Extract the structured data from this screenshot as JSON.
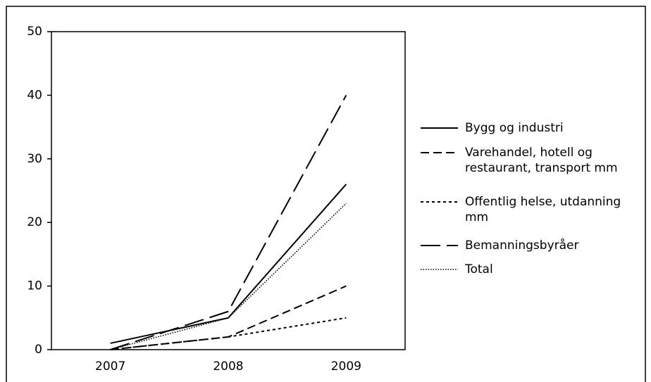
{
  "chart_data": {
    "type": "line",
    "categories": [
      "2007",
      "2008",
      "2009"
    ],
    "ylim": [
      0,
      50
    ],
    "yticks": [
      0,
      10,
      20,
      30,
      40,
      50
    ],
    "series": [
      {
        "name": "Bygg og industri",
        "color": "#000000",
        "dash": "none",
        "values": [
          1,
          5,
          26
        ]
      },
      {
        "name": "Varehandel, hotell og restaurant, transport mm",
        "color": "#000000",
        "dash": "12 6",
        "values": [
          0,
          2,
          10
        ]
      },
      {
        "name": "Offentlig helse, utdanning mm",
        "color": "#000000",
        "dash": "4 4",
        "values": [
          0,
          2,
          5
        ]
      },
      {
        "name": "Bemanningsbyråer",
        "color": "#000000",
        "dash": "28 9",
        "values": [
          0,
          6,
          40
        ]
      },
      {
        "name": "Total",
        "color": "#000000",
        "dash": "1.5 2",
        "values": [
          0,
          5,
          23
        ]
      }
    ]
  }
}
